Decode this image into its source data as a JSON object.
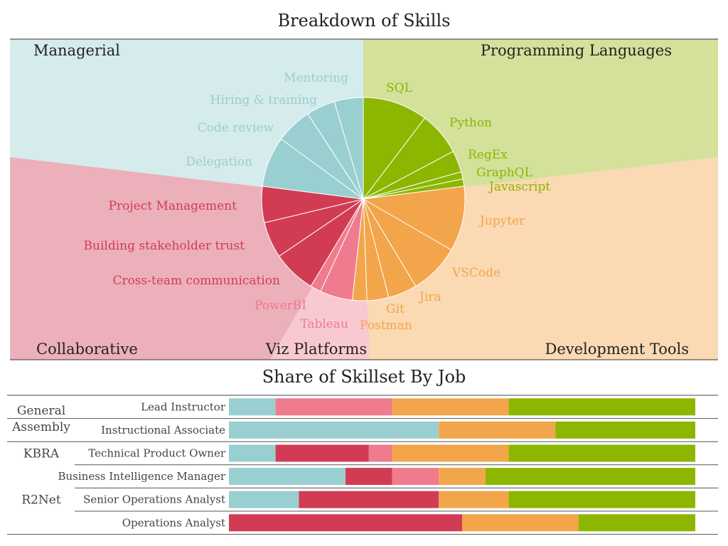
{
  "chart_data": [
    {
      "type": "pie",
      "title": "Breakdown of Skills",
      "categories": [
        {
          "name": "Programming Languages",
          "color": "#8db600",
          "bg": "#d3e19b"
        },
        {
          "name": "Development Tools",
          "color": "#f2a54a",
          "bg": "#fad9b3"
        },
        {
          "name": "Viz Platforms",
          "color": "#f07a8e",
          "bg": "#f9c9d1"
        },
        {
          "name": "Collaborative",
          "color": "#d13c54",
          "bg": "#ecb0ba"
        },
        {
          "name": "Managerial",
          "color": "#99cfd1",
          "bg": "#d5ebec"
        }
      ],
      "slices": [
        {
          "label": "SQL",
          "category": "Programming Languages",
          "value": 9
        },
        {
          "label": "Python",
          "category": "Programming Languages",
          "value": 6
        },
        {
          "label": "RegEx",
          "category": "Programming Languages",
          "value": 3
        },
        {
          "label": "GraphQL",
          "category": "Programming Languages",
          "value": 1
        },
        {
          "label": "Javascript",
          "category": "Programming Languages",
          "value": 1
        },
        {
          "label": "Jupyter",
          "category": "Development Tools",
          "value": 9
        },
        {
          "label": "VSCode",
          "category": "Development Tools",
          "value": 7
        },
        {
          "label": "Jira",
          "category": "Development Tools",
          "value": 4
        },
        {
          "label": "Git",
          "category": "Development Tools",
          "value": 3
        },
        {
          "label": "Postman",
          "category": "Development Tools",
          "value": 2
        },
        {
          "label": "Tableau",
          "category": "Viz Platforms",
          "value": 4.5
        },
        {
          "label": "PowerBI",
          "category": "Viz Platforms",
          "value": 1.5
        },
        {
          "label": "Cross-team communication",
          "category": "Collaborative",
          "value": 6
        },
        {
          "label": "Building stakeholder trust",
          "category": "Collaborative",
          "value": 5
        },
        {
          "label": "Project Management",
          "category": "Collaborative",
          "value": 5
        },
        {
          "label": "Delegation",
          "category": "Managerial",
          "value": 7
        },
        {
          "label": "Code review",
          "category": "Managerial",
          "value": 5
        },
        {
          "label": "Hiring & training",
          "category": "Managerial",
          "value": 4
        },
        {
          "label": "Mentoring",
          "category": "Managerial",
          "value": 4
        }
      ]
    },
    {
      "type": "bar",
      "stacked": true,
      "orientation": "horizontal",
      "title": "Share of Skillset By Job",
      "series_order": [
        "Managerial",
        "Collaborative",
        "Viz Platforms",
        "Development Tools",
        "Programming Languages"
      ],
      "series_colors": {
        "Managerial": "#99cfd1",
        "Collaborative": "#d13c54",
        "Viz Platforms": "#f07a8e",
        "Development Tools": "#f2a54a",
        "Programming Languages": "#8db600"
      },
      "rows": [
        {
          "label": "Lead Instructor",
          "group": "General Assembly",
          "values": {
            "Managerial": 10,
            "Collaborative": 0,
            "Viz Platforms": 25,
            "Development Tools": 25,
            "Programming Languages": 40
          }
        },
        {
          "label": "Instructional Associate",
          "group": "General Assembly",
          "values": {
            "Managerial": 45,
            "Collaborative": 0,
            "Viz Platforms": 0,
            "Development Tools": 25,
            "Programming Languages": 30
          }
        },
        {
          "label": "Technical Product Owner",
          "group": "KBRA",
          "values": {
            "Managerial": 10,
            "Collaborative": 20,
            "Viz Platforms": 5,
            "Development Tools": 25,
            "Programming Languages": 40
          }
        },
        {
          "label": "Business Intelligence Manager",
          "group": "R2Net",
          "values": {
            "Managerial": 25,
            "Collaborative": 10,
            "Viz Platforms": 10,
            "Development Tools": 10,
            "Programming Languages": 45
          }
        },
        {
          "label": "Senior Operations Analyst",
          "group": "R2Net",
          "values": {
            "Managerial": 15,
            "Collaborative": 30,
            "Viz Platforms": 0,
            "Development Tools": 15,
            "Programming Languages": 40
          }
        },
        {
          "label": "Operations Analyst",
          "group": "R2Net",
          "values": {
            "Managerial": 0,
            "Collaborative": 50,
            "Viz Platforms": 0,
            "Development Tools": 25,
            "Programming Languages": 25
          }
        }
      ],
      "groups": [
        {
          "name": "General Assembly",
          "lines": [
            "General",
            "Assembly"
          ]
        },
        {
          "name": "KBRA",
          "lines": [
            "KBRA"
          ]
        },
        {
          "name": "R2Net",
          "lines": [
            "R2Net"
          ]
        }
      ]
    }
  ]
}
